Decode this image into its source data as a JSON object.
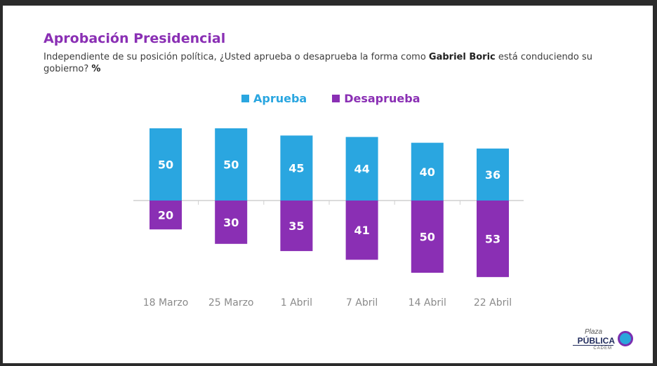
{
  "header": {
    "title": "Aprobación Presidencial",
    "subtitle_pre": "Independiente de su posición política, ¿Usted aprueba o desaprueba la forma como ",
    "subtitle_name": "Gabriel Boric",
    "subtitle_post": " está conduciendo su gobierno?",
    "subtitle_unit": "%"
  },
  "colors": {
    "aprueba": "#2aa6e0",
    "desaprueba": "#8a2fb4",
    "axis": "#cfcfcf",
    "tick_label": "#8a8a8a"
  },
  "logo": {
    "line1": "Plaza",
    "line2": "PÚBLICA",
    "line3": "CADEM"
  },
  "chart_data": {
    "type": "bar",
    "title": "Aprobación Presidencial",
    "categories": [
      "18 Marzo",
      "25 Marzo",
      "1 Abril",
      "7 Abril",
      "14 Abril",
      "22 Abril"
    ],
    "series": [
      {
        "name": "Aprueba",
        "values": [
          50,
          50,
          45,
          44,
          40,
          36
        ]
      },
      {
        "name": "Desaprueba",
        "values": [
          20,
          30,
          35,
          41,
          50,
          53
        ]
      }
    ],
    "layout": "diverging",
    "legend_position": "top",
    "grid": false,
    "data_labels": true
  }
}
